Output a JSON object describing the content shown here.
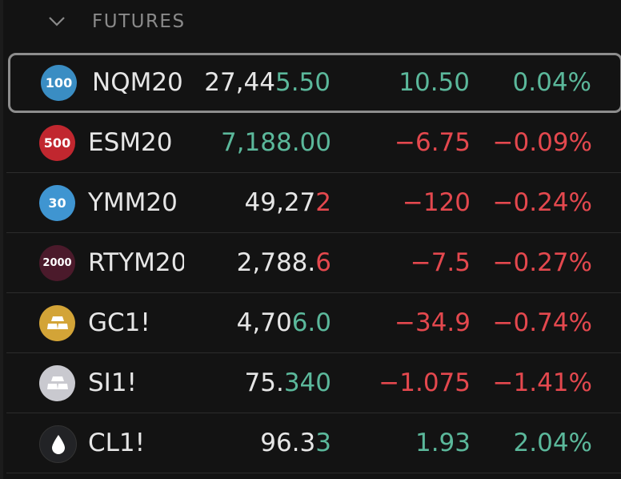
{
  "header": {
    "title": "FUTURES"
  },
  "rows": [
    {
      "icon_label": "100",
      "icon_color": "#3a8dc3",
      "symbol": "NQM20",
      "price_main": "27,44",
      "price_tick": "5.50",
      "tick_color": "#5bb89b",
      "change": "10.50",
      "change_percent": "0.04%",
      "change_color": "#5bb89b"
    },
    {
      "icon_label": "500",
      "icon_color": "#c1272f",
      "symbol": "ESM20",
      "price_tick": "7,188.00",
      "tick_color": "#5bb89b",
      "change": "−6.75",
      "change_percent": "−0.09%",
      "change_color": "#e4484e"
    },
    {
      "icon_label": "30",
      "icon_color": "#3f95d1",
      "symbol": "YMM20",
      "price_main": "49,27",
      "price_tick": "2",
      "tick_color": "#e4484e",
      "change": "−120",
      "change_percent": "−0.24%",
      "change_color": "#e4484e"
    },
    {
      "icon_label": "2000",
      "icon_color": "#4b1a2b",
      "symbol": "RTYM20",
      "price_main": "2,788.",
      "price_tick": "6",
      "tick_color": "#e4484e",
      "change": "−7.5",
      "change_percent": "−0.27%",
      "change_color": "#e4484e"
    },
    {
      "icon_color": "#d3a437",
      "symbol": "GC1!",
      "price_main": "4,70",
      "price_tick": "6.0",
      "tick_color": "#5bb89b",
      "change": "−34.9",
      "change_percent": "−0.74%",
      "change_color": "#e4484e"
    },
    {
      "icon_color": "#c9c9cf",
      "symbol": "SI1!",
      "price_main": "75.",
      "price_tick": "340",
      "tick_color": "#5bb89b",
      "change": "−1.075",
      "change_percent": "−1.41%",
      "change_color": "#e4484e"
    },
    {
      "icon_color": "#222326",
      "symbol": "CL1!",
      "price_main": "96.3",
      "price_tick": "3",
      "tick_color": "#5bb89b",
      "change": "1.93",
      "change_percent": "2.04%",
      "change_color": "#5bb89b"
    }
  ]
}
